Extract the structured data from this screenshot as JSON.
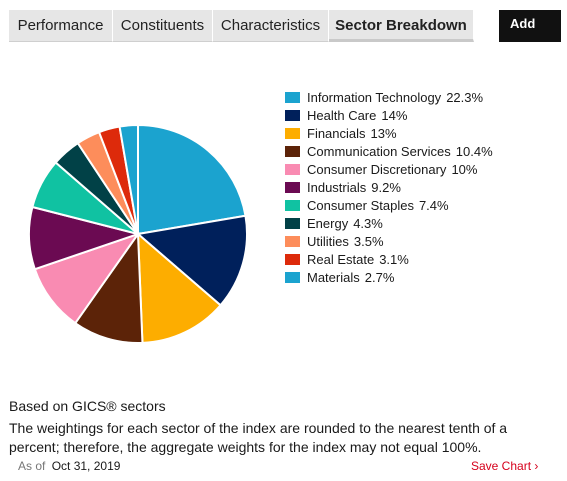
{
  "tabs": [
    {
      "label": "Performance",
      "active": false
    },
    {
      "label": "Constituents",
      "active": false
    },
    {
      "label": "Characteristics",
      "active": false
    },
    {
      "label": "Sector Breakdown",
      "active": true
    }
  ],
  "add_label": "Add",
  "chart_data": {
    "type": "pie",
    "title": "",
    "legend_position": "right",
    "categories": [
      "Information Technology",
      "Health Care",
      "Financials",
      "Communication Services",
      "Consumer Discretionary",
      "Industrials",
      "Consumer Staples",
      "Energy",
      "Utilities",
      "Real Estate",
      "Materials"
    ],
    "value_labels": [
      "22.3%",
      "14%",
      "13%",
      "10.4%",
      "10%",
      "9.2%",
      "7.4%",
      "4.3%",
      "3.5%",
      "3.1%",
      "2.7%"
    ],
    "values": [
      22.3,
      14,
      13,
      10.4,
      10,
      9.2,
      7.4,
      4.3,
      3.5,
      3.1,
      2.7
    ],
    "colors": [
      "#1ba3cf",
      "#00205b",
      "#fdad00",
      "#5c2308",
      "#f98bb2",
      "#6b0a52",
      "#10c2a2",
      "#014147",
      "#fd8d5b",
      "#dd2a0b",
      "#1ba3cf"
    ]
  },
  "footer": {
    "basis": "Based on GICS® sectors",
    "note": "The weightings for each sector of the index are rounded to the nearest tenth of a percent; therefore, the aggregate weights for the index may not equal 100%.",
    "as_of_label": "As of",
    "as_of_date": "Oct 31, 2019",
    "save_chart": "Save Chart ›"
  }
}
